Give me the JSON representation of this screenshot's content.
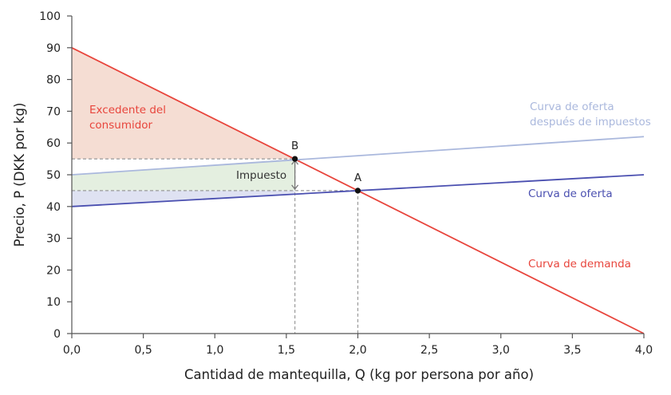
{
  "chart_data": {
    "type": "line",
    "xlabel": "Cantidad de mantequilla, Q (kg por persona por año)",
    "ylabel": "Precio, P (DKK por kg)",
    "xlim": [
      0,
      4
    ],
    "ylim": [
      0,
      100
    ],
    "x_ticks": [
      "0,0",
      "0,5",
      "1,0",
      "1,5",
      "2,0",
      "2,5",
      "3,0",
      "3,5",
      "4,0"
    ],
    "y_ticks": [
      "0",
      "10",
      "20",
      "30",
      "40",
      "50",
      "60",
      "70",
      "80",
      "90",
      "100"
    ],
    "grid": false,
    "series": [
      {
        "name": "Curva de demanda",
        "color": "#e8453c",
        "points": [
          [
            0,
            90
          ],
          [
            4,
            0
          ]
        ]
      },
      {
        "name": "Curva de oferta",
        "color": "#4a4fb0",
        "points": [
          [
            0,
            40
          ],
          [
            4,
            50
          ]
        ]
      },
      {
        "name": "Curva de oferta después de impuestos",
        "color": "#aab8dd",
        "points": [
          [
            0,
            50
          ],
          [
            4,
            62
          ]
        ]
      }
    ],
    "points": [
      {
        "label": "A",
        "x": 2.0,
        "y": 45
      },
      {
        "label": "B",
        "x": 1.56,
        "y": 55
      }
    ],
    "areas": [
      {
        "name": "Excedente del consumidor",
        "color": "#f5ddd3"
      },
      {
        "name": "Impuesto",
        "color": "#e4efe0"
      },
      {
        "name": "",
        "color": "#dfe2f2"
      }
    ],
    "annotations": {
      "consumer_surplus": [
        "Excedente del",
        "consumidor"
      ],
      "supply_after_tax": [
        "Curva de oferta",
        "después de impuestos"
      ],
      "supply": "Curva de oferta",
      "demand": "Curva de demanda",
      "tax": "Impuesto"
    },
    "colors": {
      "demand": "#e8453c",
      "supply": "#4a4fb0",
      "supply_after_tax": "#aab8dd",
      "surplus_fill": "#f5ddd3",
      "tax_fill": "#e4efe0",
      "producer_fill": "#dfe2f2",
      "axis": "#555555",
      "dashed": "#999999"
    }
  }
}
